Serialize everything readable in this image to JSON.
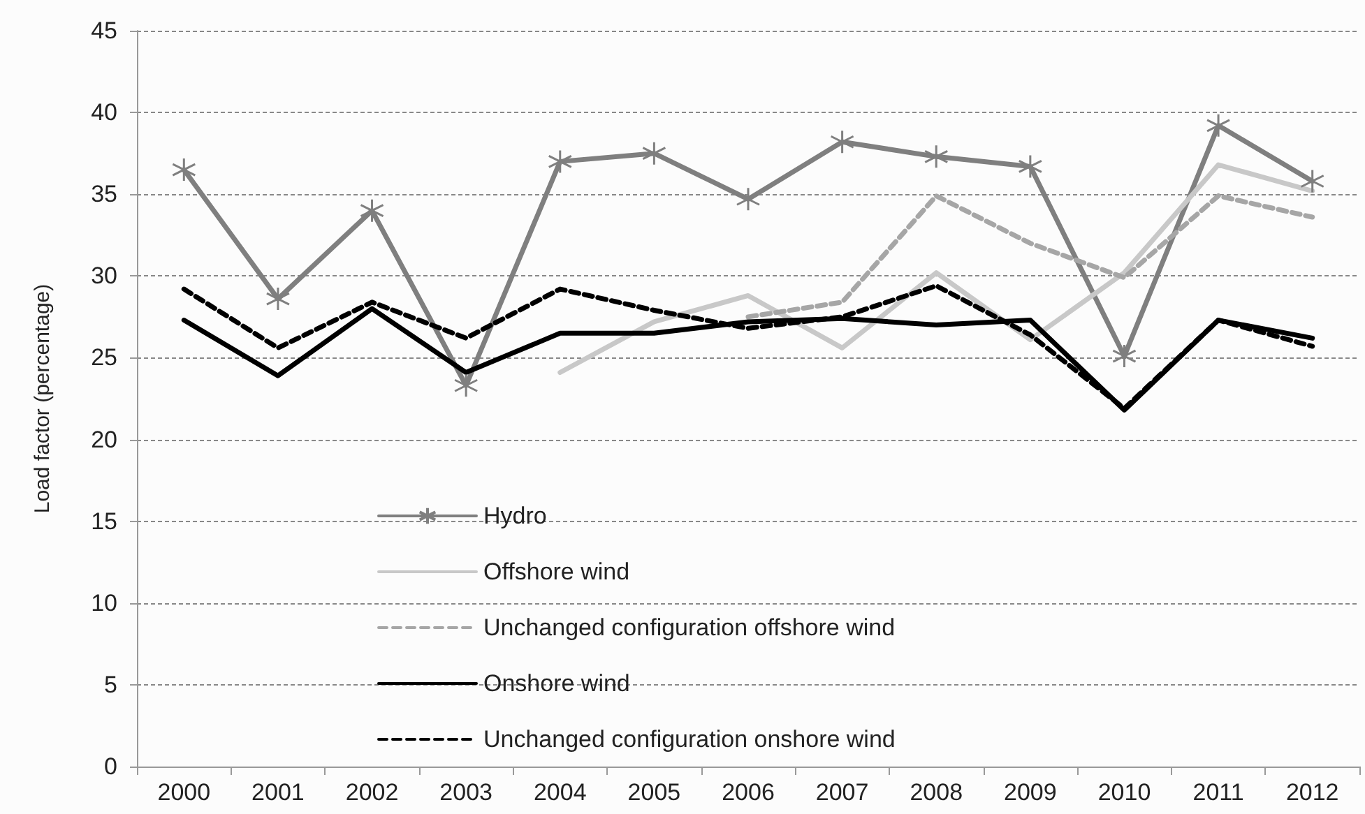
{
  "chart_data": {
    "type": "line",
    "ylabel": "Load factor (percentage)",
    "categories": [
      "2000",
      "2001",
      "2002",
      "2003",
      "2004",
      "2005",
      "2006",
      "2007",
      "2008",
      "2009",
      "2010",
      "2011",
      "2012"
    ],
    "series": [
      {
        "name": "Hydro",
        "color": "#7f7f7f",
        "marker": "cross",
        "line_style": "solid",
        "values": [
          36.5,
          28.6,
          34.0,
          23.3,
          37.0,
          37.5,
          34.7,
          38.2,
          37.3,
          36.7,
          25.1,
          39.2,
          35.8
        ]
      },
      {
        "name": "Offshore wind",
        "color": "#c8c8c8",
        "marker": "none",
        "line_style": "solid",
        "values": [
          null,
          null,
          null,
          null,
          24.1,
          27.2,
          28.8,
          25.6,
          30.2,
          26.1,
          30.2,
          36.8,
          35.2
        ]
      },
      {
        "name": "Unchanged configuration offshore wind",
        "color": "#a6a6a6",
        "marker": "none",
        "line_style": "dashed",
        "values": [
          null,
          null,
          null,
          null,
          null,
          null,
          27.5,
          28.4,
          34.9,
          32.0,
          29.9,
          34.9,
          33.6
        ]
      },
      {
        "name": "Onshore wind",
        "color": "#000000",
        "marker": "none",
        "line_style": "solid",
        "values": [
          27.3,
          23.9,
          28.0,
          24.1,
          26.5,
          26.5,
          27.2,
          27.4,
          27.0,
          27.3,
          21.8,
          27.3,
          26.2
        ]
      },
      {
        "name": "Unchanged configuration onshore wind",
        "color": "#000000",
        "marker": "none",
        "line_style": "dashed",
        "values": [
          29.2,
          25.6,
          28.4,
          26.2,
          29.2,
          27.9,
          26.8,
          27.5,
          29.4,
          26.4,
          21.9,
          27.3,
          25.7
        ]
      }
    ],
    "ylim": [
      0,
      45
    ],
    "yticks": [
      0,
      5,
      10,
      15,
      20,
      25,
      30,
      35,
      40,
      45
    ],
    "grid": "y",
    "legend": "bottom"
  }
}
